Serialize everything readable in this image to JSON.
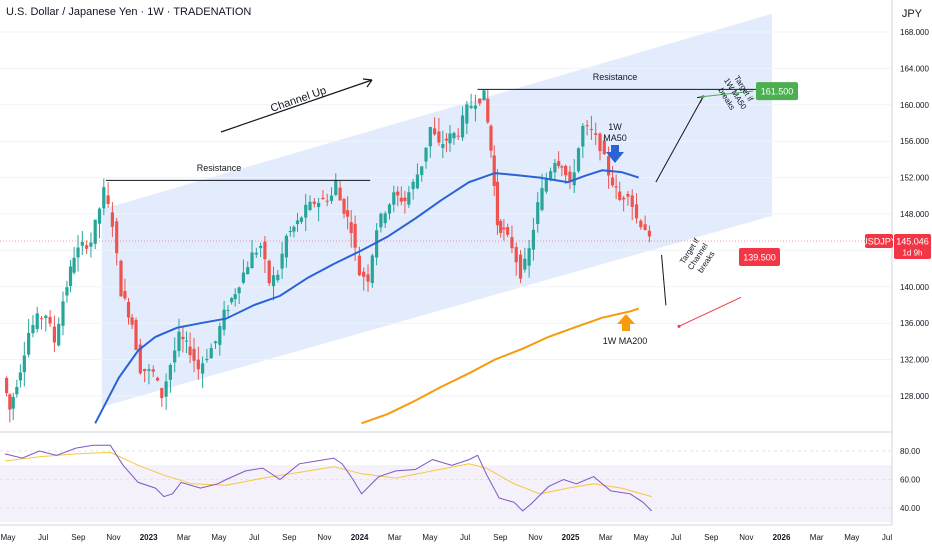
{
  "header": {
    "title": "U.S. Dollar / Japanese Yen · 1W · TRADENATION",
    "currency": "JPY"
  },
  "colors": {
    "channel_fill": "#dbe7fb",
    "ma50": "#2a62d8",
    "ma200": "#f59b0c",
    "up_candle": "#26a69a",
    "down_candle": "#ef5350",
    "rsi_line": "#7e57c2",
    "rsi_ma": "#f7c83c",
    "rsi_band": "#ede7f6",
    "target_up": "#4caf50",
    "target_down": "#f23645"
  },
  "icons": {
    "ma50_arrow": "arrow-down-icon",
    "ma200_arrow": "arrow-up-icon"
  },
  "price_axis": {
    "labels": [
      "168.000",
      "164.000",
      "160.000",
      "156.000",
      "152.000",
      "148.000",
      "144.000",
      "140.000",
      "136.000",
      "132.000",
      "128.000"
    ],
    "current_symbol": "USDJPY",
    "current_price": "145.046",
    "countdown": "1d 9h"
  },
  "rsi_axis": {
    "labels": [
      "80.00",
      "60.00",
      "40.00"
    ]
  },
  "time_axis": {
    "labels": [
      "May",
      "Jul",
      "Sep",
      "Nov",
      "2023",
      "Mar",
      "May",
      "Jul",
      "Sep",
      "Nov",
      "2024",
      "Mar",
      "May",
      "Jul",
      "Sep",
      "Nov",
      "2025",
      "Mar",
      "May",
      "Jul",
      "Sep",
      "Nov",
      "2026",
      "Mar",
      "May",
      "Jul"
    ]
  },
  "annotations": {
    "channel_up": "Channel Up",
    "resistance_1": "Resistance",
    "resistance_2": "Resistance",
    "ma50_label_line1": "1W",
    "ma50_label_line2": "MA50",
    "ma200_label": "1W MA200",
    "target_up_text_line1": "Target if",
    "target_up_text_line2": "1W MA50",
    "target_up_text_line3": "breaks",
    "target_up_value": "161.500",
    "target_down_text_line1": "Target if",
    "target_down_text_line2": "Channel",
    "target_down_text_line3": "breaks",
    "target_down_value": "139.500"
  },
  "chart_data": {
    "type": "candlestick",
    "timeframe": "1W",
    "price_range": [
      125,
      170
    ],
    "close_path": [
      [
        2022.3,
        130.0
      ],
      [
        2022.33,
        126.5
      ],
      [
        2022.38,
        131.0
      ],
      [
        2022.42,
        135.0
      ],
      [
        2022.46,
        136.5
      ],
      [
        2022.5,
        137.0
      ],
      [
        2022.54,
        134.0
      ],
      [
        2022.58,
        138.5
      ],
      [
        2022.63,
        143.5
      ],
      [
        2022.67,
        144.5
      ],
      [
        2022.71,
        145.0
      ],
      [
        2022.77,
        150.5
      ],
      [
        2022.81,
        147.0
      ],
      [
        2022.85,
        139.5
      ],
      [
        2022.9,
        136.0
      ],
      [
        2022.94,
        131.0
      ],
      [
        2023.0,
        130.5
      ],
      [
        2023.04,
        128.0
      ],
      [
        2023.08,
        131.5
      ],
      [
        2023.12,
        134.5
      ],
      [
        2023.17,
        133.0
      ],
      [
        2023.21,
        131.0
      ],
      [
        2023.25,
        132.5
      ],
      [
        2023.29,
        134.0
      ],
      [
        2023.33,
        137.0
      ],
      [
        2023.38,
        139.5
      ],
      [
        2023.42,
        141.5
      ],
      [
        2023.46,
        143.5
      ],
      [
        2023.5,
        144.5
      ],
      [
        2023.54,
        140.5
      ],
      [
        2023.58,
        141.5
      ],
      [
        2023.62,
        145.5
      ],
      [
        2023.67,
        147.0
      ],
      [
        2023.71,
        148.5
      ],
      [
        2023.75,
        149.3
      ],
      [
        2023.79,
        149.5
      ],
      [
        2023.83,
        150.0
      ],
      [
        2023.85,
        151.5
      ],
      [
        2023.87,
        149.5
      ],
      [
        2023.92,
        146.5
      ],
      [
        2023.96,
        141.5
      ],
      [
        2024.0,
        141.0
      ],
      [
        2024.04,
        146.5
      ],
      [
        2024.08,
        148.5
      ],
      [
        2024.12,
        150.0
      ],
      [
        2024.17,
        149.5
      ],
      [
        2024.21,
        151.3
      ],
      [
        2024.25,
        153.5
      ],
      [
        2024.29,
        157.5
      ],
      [
        2024.33,
        155.5
      ],
      [
        2024.38,
        156.5
      ],
      [
        2024.42,
        157.0
      ],
      [
        2024.46,
        159.5
      ],
      [
        2024.5,
        160.5
      ],
      [
        2024.54,
        161.0
      ],
      [
        2024.57,
        155.0
      ],
      [
        2024.6,
        147.0
      ],
      [
        2024.63,
        146.0
      ],
      [
        2024.67,
        144.5
      ],
      [
        2024.71,
        141.5
      ],
      [
        2024.73,
        142.5
      ],
      [
        2024.75,
        144.0
      ],
      [
        2024.79,
        149.0
      ],
      [
        2024.83,
        152.0
      ],
      [
        2024.87,
        154.0
      ],
      [
        2024.9,
        153.5
      ],
      [
        2024.94,
        151.0
      ],
      [
        2024.96,
        153.0
      ],
      [
        2025.0,
        157.5
      ],
      [
        2025.04,
        157.0
      ],
      [
        2025.08,
        155.5
      ],
      [
        2025.12,
        152.5
      ],
      [
        2025.17,
        149.5
      ],
      [
        2025.21,
        150.5
      ],
      [
        2025.25,
        147.5
      ],
      [
        2025.29,
        146.5
      ],
      [
        2025.31,
        145.0
      ]
    ],
    "ma50": [
      [
        2022.72,
        125.0
      ],
      [
        2022.83,
        130.0
      ],
      [
        2022.92,
        133.0
      ],
      [
        2023.0,
        134.5
      ],
      [
        2023.1,
        135.5
      ],
      [
        2023.21,
        136.0
      ],
      [
        2023.33,
        136.5
      ],
      [
        2023.46,
        138.0
      ],
      [
        2023.58,
        139.0
      ],
      [
        2023.71,
        141.0
      ],
      [
        2023.83,
        142.5
      ],
      [
        2023.96,
        144.0
      ],
      [
        2024.08,
        145.5
      ],
      [
        2024.21,
        147.5
      ],
      [
        2024.33,
        149.5
      ],
      [
        2024.46,
        151.5
      ],
      [
        2024.58,
        152.5
      ],
      [
        2024.67,
        152.3
      ],
      [
        2024.79,
        152.0
      ],
      [
        2024.92,
        151.5
      ],
      [
        2025.0,
        152.2
      ],
      [
        2025.08,
        152.8
      ],
      [
        2025.17,
        152.6
      ],
      [
        2025.25,
        152.0
      ]
    ],
    "ma200": [
      [
        2023.96,
        125.0
      ],
      [
        2024.08,
        126.0
      ],
      [
        2024.21,
        127.5
      ],
      [
        2024.33,
        129.0
      ],
      [
        2024.46,
        130.5
      ],
      [
        2024.58,
        132.0
      ],
      [
        2024.71,
        133.2
      ],
      [
        2024.83,
        134.5
      ],
      [
        2024.96,
        135.6
      ],
      [
        2025.08,
        136.6
      ],
      [
        2025.21,
        137.3
      ],
      [
        2025.25,
        137.6
      ]
    ],
    "channel": {
      "upper": [
        [
          2022.75,
          148.5
        ],
        [
          2025.87,
          170.0
        ]
      ],
      "lower": [
        [
          2022.75,
          126.8
        ],
        [
          2025.87,
          147.8
        ]
      ]
    },
    "resistance_lines": [
      {
        "from": [
          2022.77,
          151.7
        ],
        "to": [
          2024.0,
          151.7
        ]
      },
      {
        "from": [
          2024.5,
          161.7
        ],
        "to": [
          2025.81,
          161.7
        ]
      }
    ],
    "projections": [
      {
        "from": [
          2025.33,
          151.5
        ],
        "to": [
          2025.55,
          160.9
        ]
      },
      {
        "from": [
          2025.31,
          143.5
        ],
        "to": [
          2025.4,
          139.5
        ]
      }
    ],
    "targets": [
      {
        "value": 161.5
      },
      {
        "value": 139.5
      }
    ],
    "rsi": {
      "range": [
        33,
        90
      ],
      "band": [
        30,
        70
      ],
      "levels": [
        80,
        60,
        40
      ],
      "values": [
        [
          2022.3,
          78
        ],
        [
          2022.38,
          75
        ],
        [
          2022.46,
          80
        ],
        [
          2022.54,
          77
        ],
        [
          2022.63,
          82
        ],
        [
          2022.71,
          84
        ],
        [
          2022.79,
          84
        ],
        [
          2022.85,
          70
        ],
        [
          2022.92,
          58
        ],
        [
          2023.0,
          54
        ],
        [
          2023.04,
          48
        ],
        [
          2023.08,
          50
        ],
        [
          2023.12,
          58
        ],
        [
          2023.21,
          54
        ],
        [
          2023.29,
          57
        ],
        [
          2023.33,
          60
        ],
        [
          2023.42,
          66
        ],
        [
          2023.5,
          68
        ],
        [
          2023.58,
          60
        ],
        [
          2023.67,
          71
        ],
        [
          2023.75,
          73
        ],
        [
          2023.83,
          75
        ],
        [
          2023.87,
          71
        ],
        [
          2023.92,
          60
        ],
        [
          2023.96,
          50
        ],
        [
          2024.04,
          62
        ],
        [
          2024.12,
          66
        ],
        [
          2024.21,
          67
        ],
        [
          2024.29,
          74
        ],
        [
          2024.38,
          70
        ],
        [
          2024.46,
          74
        ],
        [
          2024.5,
          77
        ],
        [
          2024.54,
          64
        ],
        [
          2024.6,
          47
        ],
        [
          2024.67,
          44
        ],
        [
          2024.71,
          38
        ],
        [
          2024.75,
          43
        ],
        [
          2024.83,
          55
        ],
        [
          2024.9,
          60
        ],
        [
          2024.96,
          57
        ],
        [
          2025.04,
          62
        ],
        [
          2025.12,
          52
        ],
        [
          2025.21,
          50
        ],
        [
          2025.27,
          44
        ],
        [
          2025.31,
          38
        ]
      ],
      "ma": [
        [
          2022.3,
          73
        ],
        [
          2022.46,
          76
        ],
        [
          2022.63,
          78
        ],
        [
          2022.79,
          79
        ],
        [
          2022.92,
          70
        ],
        [
          2023.04,
          63
        ],
        [
          2023.17,
          57
        ],
        [
          2023.33,
          56
        ],
        [
          2023.5,
          61
        ],
        [
          2023.67,
          65
        ],
        [
          2023.83,
          69
        ],
        [
          2023.96,
          64
        ],
        [
          2024.12,
          61
        ],
        [
          2024.29,
          66
        ],
        [
          2024.46,
          71
        ],
        [
          2024.54,
          68
        ],
        [
          2024.67,
          57
        ],
        [
          2024.79,
          50
        ],
        [
          2024.92,
          54
        ],
        [
          2025.04,
          57
        ],
        [
          2025.17,
          54
        ],
        [
          2025.31,
          48
        ]
      ]
    }
  }
}
